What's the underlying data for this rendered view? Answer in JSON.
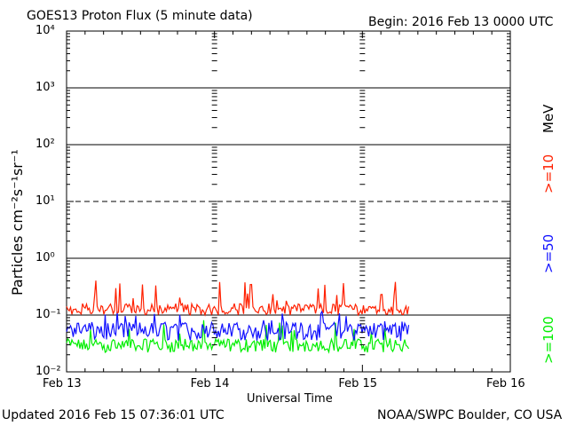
{
  "header": {
    "title": "GOES13 Proton Flux (5 minute data)",
    "begin": "Begin: 2016 Feb 13 0000 UTC"
  },
  "footer": {
    "updated": "Updated 2016 Feb 15 07:36:01 UTC",
    "credit": "NOAA/SWPC Boulder, CO USA"
  },
  "colors": {
    "ge10": "#ff2000",
    "ge50": "#1010ff",
    "ge100": "#00ee00",
    "axis": "#000000",
    "background": "#ffffff"
  },
  "chart_data": {
    "type": "line",
    "title": "GOES13 Proton Flux (5 minute data)",
    "xlabel": "Universal Time",
    "ylabel": "Particles cm⁻²s⁻¹sr⁻¹",
    "yscale": "log",
    "ylim": [
      0.01,
      10000
    ],
    "yticks": [
      "10⁻²",
      "10⁻¹",
      "10⁰",
      "10¹",
      "10²",
      "10³",
      "10⁴"
    ],
    "xticks": [
      "Feb 13",
      "Feb 14",
      "Feb 15",
      "Feb 16"
    ],
    "xlim_days": [
      0,
      3
    ],
    "data_end_day": 2.32,
    "grid": "major decades solid, 10¹ dashed",
    "unit_label": "MeV",
    "series": [
      {
        "name": ">=10",
        "color": "#ff2000",
        "typical": 0.13,
        "low": 0.1,
        "high": 0.42
      },
      {
        "name": ">=50",
        "color": "#1010ff",
        "typical": 0.055,
        "low": 0.035,
        "high": 0.12
      },
      {
        "name": ">=100",
        "color": "#00ee00",
        "typical": 0.03,
        "low": 0.022,
        "high": 0.085
      }
    ]
  }
}
